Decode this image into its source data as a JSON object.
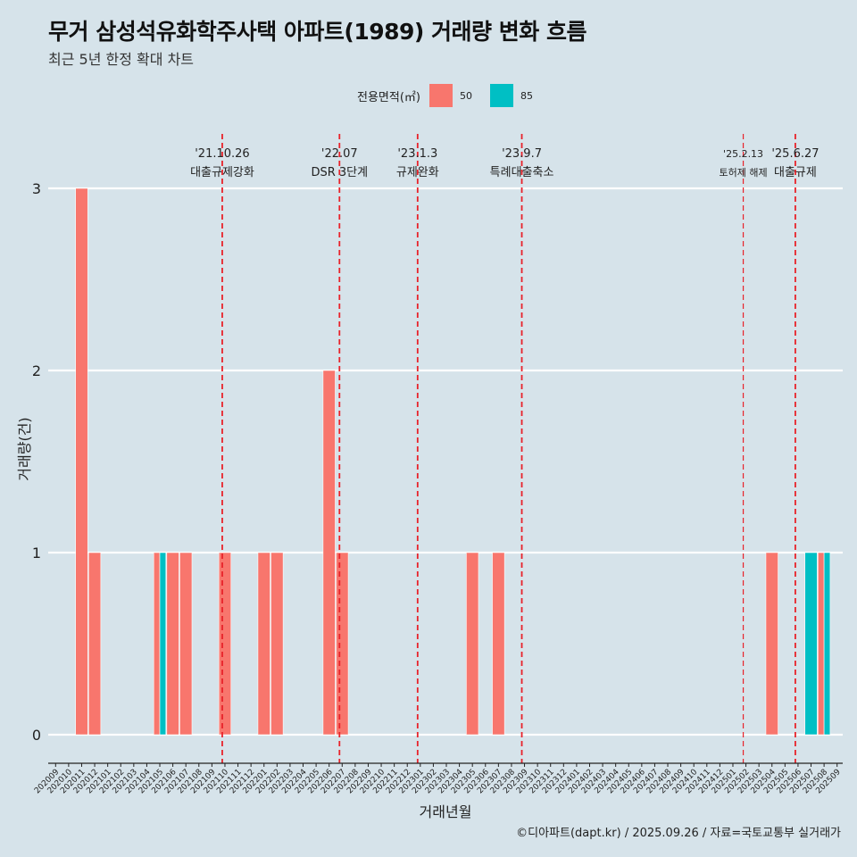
{
  "title": "무거 삼성석유화학주사택 아파트(1989) 거래량 변화 흐름",
  "subtitle": "최근 5년 한정 확대 차트",
  "caption": "©디아파트(dapt.kr) / 2025.09.26 / 자료=국토교통부 실거래가",
  "legend": {
    "title": "전용면적(㎡)",
    "items": [
      {
        "label": "50",
        "color": "#f8766d"
      },
      {
        "label": "85",
        "color": "#00bfc4"
      }
    ]
  },
  "chart_data": {
    "type": "bar",
    "title": "무거 삼성석유화학주사택 아파트(1989) 거래량 변화 흐름",
    "subtitle": "최근 5년 한정 확대 차트",
    "xlabel": "거래년월",
    "ylabel": "거래량(건)",
    "ylim": [
      0,
      3
    ],
    "yticks": [
      0,
      1,
      2,
      3
    ],
    "grid": "horizontal major gridlines",
    "legend_position": "top",
    "categories": [
      "202009",
      "202010",
      "202011",
      "202012",
      "202101",
      "202102",
      "202103",
      "202104",
      "202105",
      "202106",
      "202107",
      "202108",
      "202109",
      "202110",
      "202111",
      "202112",
      "202201",
      "202202",
      "202203",
      "202204",
      "202205",
      "202206",
      "202207",
      "202208",
      "202209",
      "202210",
      "202211",
      "202212",
      "202301",
      "202302",
      "202303",
      "202304",
      "202305",
      "202306",
      "202307",
      "202308",
      "202309",
      "202310",
      "202311",
      "202312",
      "202401",
      "202402",
      "202403",
      "202404",
      "202405",
      "202406",
      "202407",
      "202408",
      "202409",
      "202410",
      "202411",
      "202412",
      "202501",
      "202502",
      "202503",
      "202504",
      "202505",
      "202506",
      "202507",
      "202508",
      "202509"
    ],
    "series": [
      {
        "name": "50",
        "color": "#f8766d",
        "points": [
          {
            "x": "202011",
            "y": 3
          },
          {
            "x": "202012",
            "y": 1
          },
          {
            "x": "202105",
            "y": 1
          },
          {
            "x": "202106",
            "y": 1
          },
          {
            "x": "202107",
            "y": 1
          },
          {
            "x": "202110",
            "y": 1
          },
          {
            "x": "202201",
            "y": 1
          },
          {
            "x": "202202",
            "y": 1
          },
          {
            "x": "202206",
            "y": 2
          },
          {
            "x": "202207",
            "y": 1
          },
          {
            "x": "202305",
            "y": 1
          },
          {
            "x": "202307",
            "y": 1
          },
          {
            "x": "202504",
            "y": 1
          },
          {
            "x": "202508",
            "y": 1
          }
        ]
      },
      {
        "name": "85",
        "color": "#00bfc4",
        "points": [
          {
            "x": "202105",
            "y": 1
          },
          {
            "x": "202507",
            "y": 1
          },
          {
            "x": "202508",
            "y": 1
          }
        ]
      }
    ],
    "annotations": [
      {
        "x": "202110",
        "date": "'21.10.26",
        "label": "대출규제강화"
      },
      {
        "x": "202207",
        "date": "'22.07",
        "label": "DSR 3단계"
      },
      {
        "x": "202301",
        "date": "'23.1.3",
        "label": "규제완화"
      },
      {
        "x": "202309",
        "date": "'23.9.7",
        "label": "특례대출축소"
      },
      {
        "x": "202502",
        "date": "'25.2.13",
        "label": "토허제 해제"
      },
      {
        "x": "202506",
        "date": "'25.6.27",
        "label": "대출규제"
      }
    ]
  }
}
